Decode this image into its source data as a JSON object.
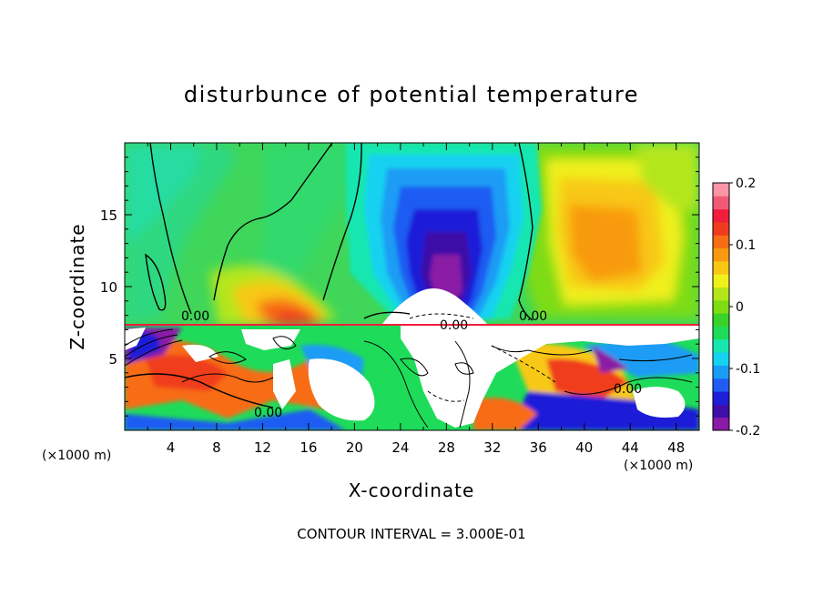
{
  "chart_data": {
    "type": "heatmap",
    "title": "disturbunce of potential temperature",
    "xlabel": "X-coordinate",
    "ylabel": "Z-coordinate",
    "x_unit_left": "(×1000 m)",
    "x_unit_right": "(×1000 m)",
    "footer": "CONTOUR INTERVAL = 3.000E-01",
    "xlim": [
      0,
      50
    ],
    "ylim": [
      0,
      20
    ],
    "x_ticks": [
      4,
      8,
      12,
      16,
      20,
      24,
      28,
      32,
      36,
      40,
      44,
      48
    ],
    "y_ticks": [
      5,
      10,
      15
    ],
    "colorbar": {
      "min": -0.2,
      "max": 0.2,
      "ticks": [
        "0.2",
        "0.1",
        "0",
        "-0.1",
        "-0.2"
      ],
      "colors": [
        "#8a1aa6",
        "#3d0fa8",
        "#1e1ed8",
        "#1f5cf2",
        "#1a9cf5",
        "#14d2f0",
        "#18e6b0",
        "#1edc5a",
        "#38d22a",
        "#7ddc12",
        "#b4e61a",
        "#f0f01a",
        "#f8c814",
        "#f89a10",
        "#f86c14",
        "#f03c1e",
        "#f01e3c",
        "#f05a78",
        "#fa96a5"
      ]
    },
    "contour_labels": [
      "0.00",
      "0.00",
      "0.00",
      "0.00",
      "0.00"
    ],
    "field_blobs": [
      {
        "x": 26.5,
        "z": 12.5,
        "value": -0.2,
        "desc": "cold anomaly core"
      },
      {
        "x": 41.5,
        "z": 13.5,
        "value": 0.12,
        "desc": "warm anomaly core"
      },
      {
        "x": 16,
        "z": 9,
        "value": 0.12,
        "desc": "warm bump"
      }
    ]
  }
}
